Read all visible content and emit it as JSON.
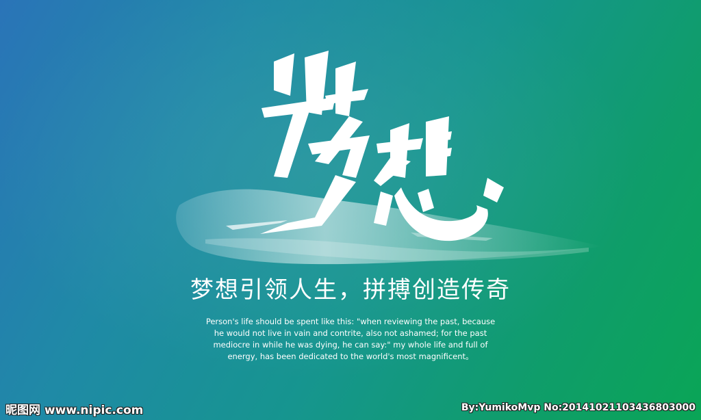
{
  "calligraphy": {
    "text": "梦想"
  },
  "headline": "梦想引领人生，拼搏创造传奇",
  "quote": {
    "lines": [
      "Person's life should be spent like this: \"when reviewing the past, because",
      "he would not live in vain and contrite, also not ashamed; for the past",
      "mediocre in while he was dying, he can say:\" my whole life and full of",
      "energy, has been dedicated to the world's most magnificent。"
    ]
  },
  "watermark": {
    "left": "昵图网 www.nipic.com",
    "right": "By:YumikoMvp No:20141021103436803000"
  },
  "colors": {
    "gradient_start": "#2a74b8",
    "gradient_end": "#0aa556",
    "text": "#ffffff"
  }
}
